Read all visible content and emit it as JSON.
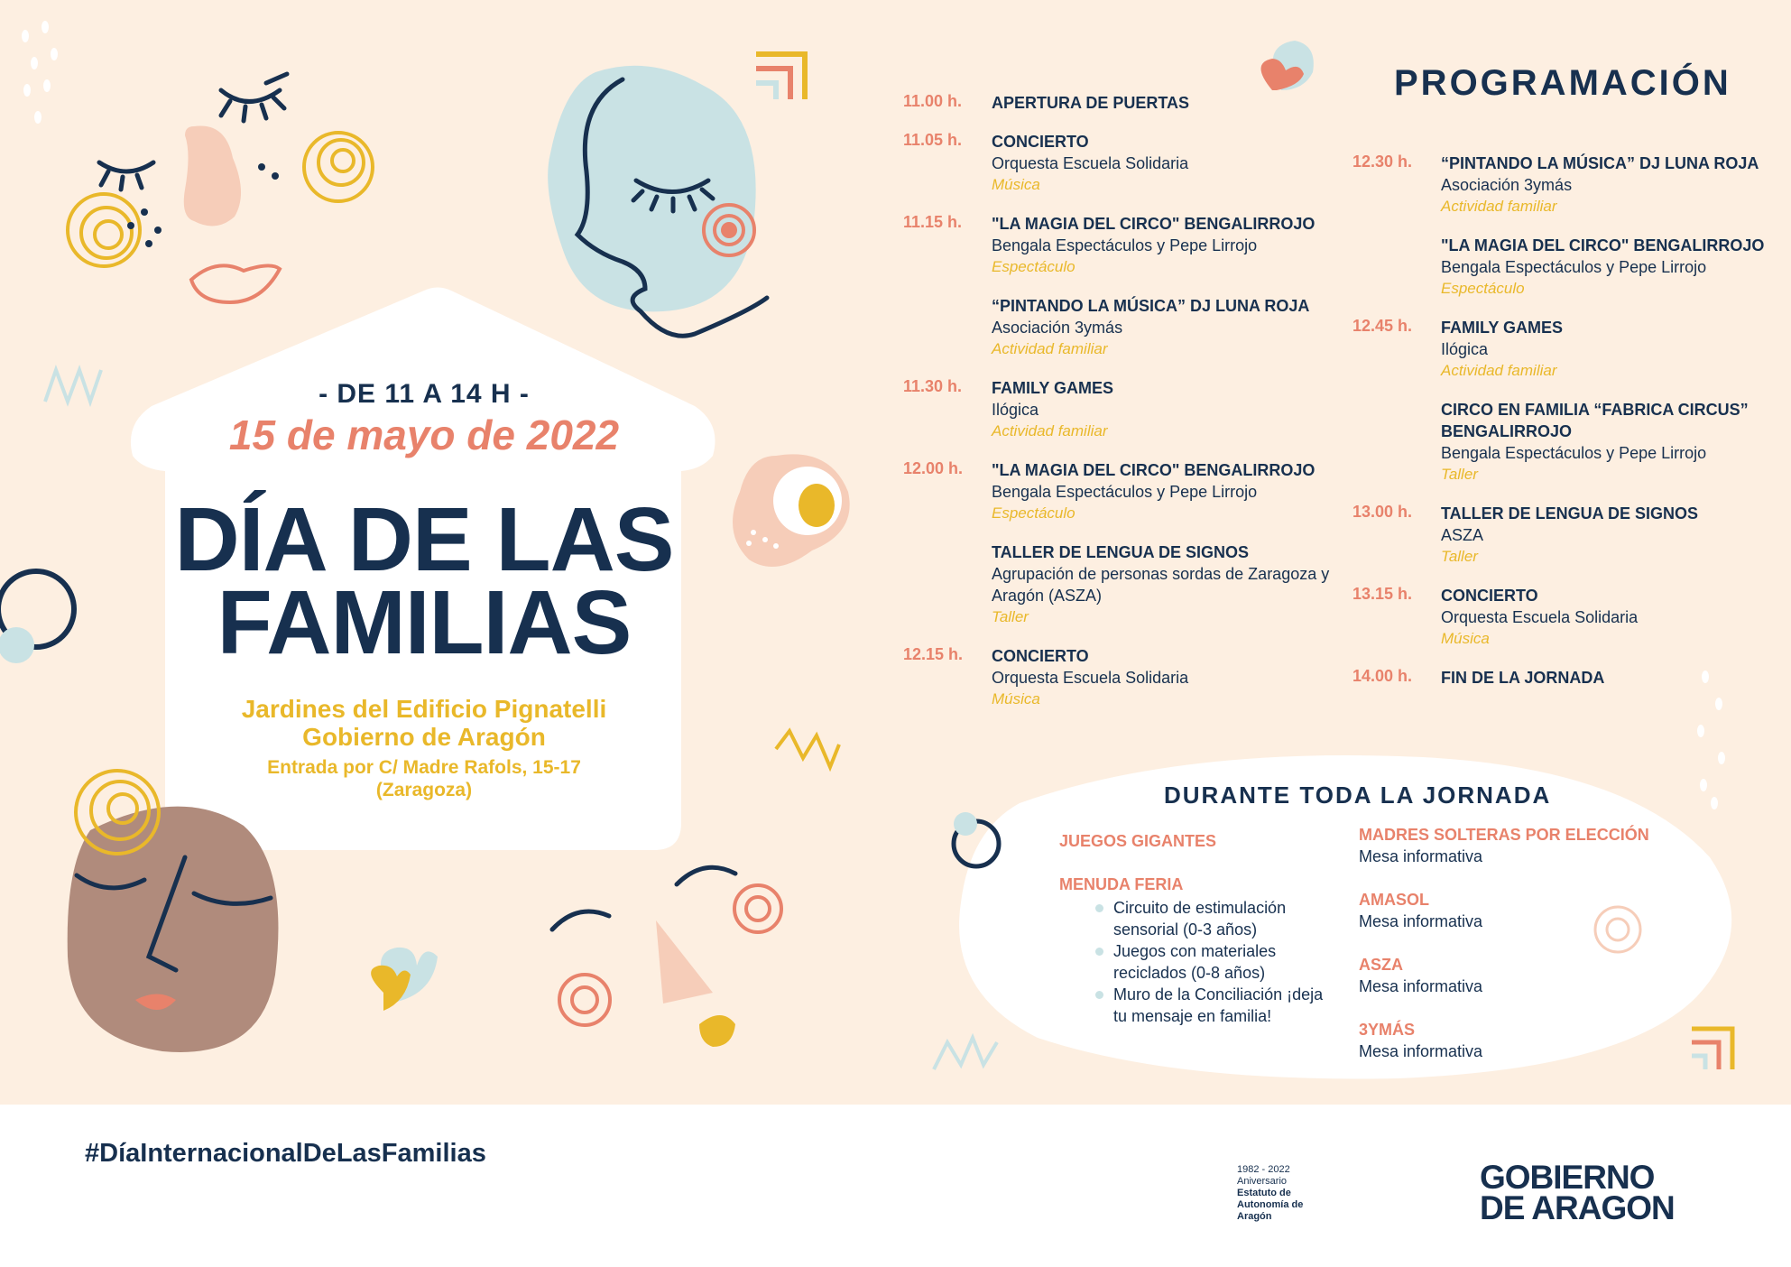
{
  "colors": {
    "background": "#fdefe1",
    "navy": "#17304f",
    "coral": "#e8826b",
    "yellow": "#e9b82a",
    "blue": "#c9e2e4",
    "pink": "#f6cdb9",
    "brown": "#b08b7c"
  },
  "event": {
    "hours": "- DE 11 A 14 H -",
    "date": "15 de mayo de 2022",
    "title_line1": "DÍA DE LAS",
    "title_line2": "FAMILIAS",
    "venue_line1": "Jardines del Edificio Pignatelli",
    "venue_line2": "Gobierno de Aragón",
    "entry_line1": "Entrada por C/ Madre Rafols, 15-17",
    "entry_line2": "(Zaragoza)"
  },
  "programme": {
    "title": "PROGRAMACIÓN",
    "col1": [
      {
        "time": "11.00 h.",
        "title": "APERTURA DE PUERTAS"
      },
      {
        "time": "11.05 h.",
        "title": "CONCIERTO",
        "org": "Orquesta Escuela Solidaria",
        "cat": "Música"
      },
      {
        "time": "11.15 h.",
        "title": "\"LA MAGIA DEL CIRCO\" BENGALIRROJO",
        "org": "Bengala Espectáculos y Pepe Lirrojo",
        "cat": "Espectáculo"
      },
      {
        "time": "",
        "title": "“PINTANDO LA MÚSICA” DJ LUNA ROJA",
        "org": "Asociación 3ymás",
        "cat": "Actividad familiar"
      },
      {
        "time": "11.30 h.",
        "title": "FAMILY GAMES",
        "org": "Ilógica",
        "cat": "Actividad familiar"
      },
      {
        "time": "12.00 h.",
        "title": "\"LA MAGIA DEL CIRCO\" BENGALIRROJO",
        "org": "Bengala Espectáculos y Pepe Lirrojo",
        "cat": "Espectáculo"
      },
      {
        "time": "",
        "title": "TALLER DE LENGUA DE SIGNOS",
        "org": "Agrupación de personas sordas de Zaragoza y Aragón (ASZA)",
        "cat": "Taller"
      },
      {
        "time": "12.15 h.",
        "title": "CONCIERTO",
        "org": "Orquesta Escuela Solidaria",
        "cat": "Música"
      }
    ],
    "col2": [
      {
        "time": "12.30 h.",
        "title": "“PINTANDO LA MÚSICA” DJ LUNA ROJA",
        "org": "Asociación 3ymás",
        "cat": "Actividad familiar"
      },
      {
        "time": "",
        "title": "\"LA MAGIA DEL CIRCO\" BENGALIRROJO",
        "org": "Bengala Espectáculos y Pepe Lirrojo",
        "cat": "Espectáculo"
      },
      {
        "time": "12.45 h.",
        "title": "FAMILY GAMES",
        "org": "Ilógica",
        "cat": "Actividad familiar"
      },
      {
        "time": "",
        "title": "CIRCO EN FAMILIA “FABRICA CIRCUS” BENGALIRROJO",
        "org": "Bengala Espectáculos y Pepe Lirrojo",
        "cat": "Taller"
      },
      {
        "time": "13.00 h.",
        "title": "TALLER DE LENGUA DE SIGNOS",
        "org": "ASZA",
        "cat": "Taller"
      },
      {
        "time": "13.15 h.",
        "title": "CONCIERTO",
        "org": "Orquesta Escuela Solidaria",
        "cat": "Música"
      },
      {
        "time": "14.00 h.",
        "title": "FIN DE LA JORNADA"
      }
    ]
  },
  "all_day": {
    "title": "DURANTE TODA LA JORNADA",
    "games": "JUEGOS GIGANTES",
    "fair": "MENUDA FERIA",
    "fair_items": [
      "Circuito de estimulación sensorial (0-3 años)",
      "Juegos con materiales reciclados (0-8 años)",
      "Muro de la Conciliación ¡deja tu mensaje en familia!"
    ],
    "tables": [
      {
        "name": "MADRES SOLTERAS POR ELECCIÓN",
        "desc": "Mesa informativa"
      },
      {
        "name": "AMASOL",
        "desc": "Mesa informativa"
      },
      {
        "name": "ASZA",
        "desc": "Mesa informativa"
      },
      {
        "name": "3YMÁS",
        "desc": "Mesa informativa"
      }
    ]
  },
  "footer": {
    "hashtag": "#DíaInternacionalDeLasFamilias",
    "anniversary_years": "1982 - 2022",
    "anniversary_label": "Aniversario",
    "anniversary_l1": "Estatuto de",
    "anniversary_l2": "Autonomía de",
    "anniversary_l3": "Aragón",
    "gov_line1": "GOBIERNO",
    "gov_line2": "DE ARAGON"
  }
}
